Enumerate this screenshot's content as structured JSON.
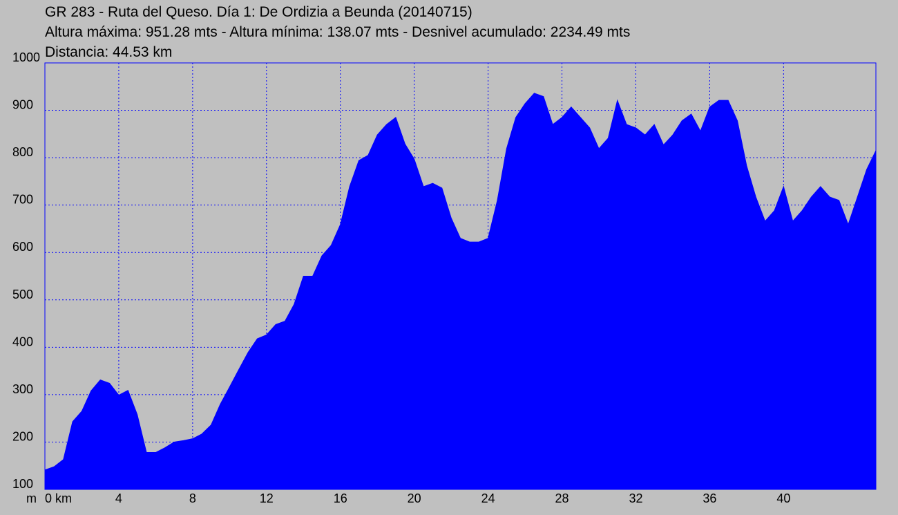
{
  "chart_data": {
    "type": "area",
    "title": "GR 283 - Ruta del Queso. Día 1: De Ordizia a Beunda (20140715)",
    "subtitle": "Altura máxima: 951.28 mts - Altura mínima: 138.07 mts - Desnivel acumulado: 2234.49 mts",
    "annotations": [
      "Distancia: 44.53 km"
    ],
    "ylabel": "m",
    "color": "#0000ff",
    "grid": true,
    "xlim": [
      0,
      45
    ],
    "ylim": [
      100,
      1000
    ],
    "xticks": [
      {
        "value": 0,
        "label": "0 km"
      },
      4,
      8,
      12,
      16,
      20,
      24,
      28,
      32,
      36,
      40
    ],
    "yticks": [
      100,
      200,
      300,
      400,
      500,
      600,
      700,
      800,
      900,
      1000
    ],
    "x": [
      0,
      0.5,
      1,
      1.5,
      2,
      2.5,
      3,
      3.5,
      4,
      4.5,
      5,
      5.5,
      6,
      6.5,
      7,
      7.5,
      8,
      8.5,
      9,
      9.5,
      10,
      10.5,
      11,
      11.5,
      12,
      12.5,
      13,
      13.5,
      14,
      14.5,
      15,
      15.5,
      16,
      16.5,
      17,
      17.5,
      18,
      18.5,
      19,
      19.5,
      20,
      20.5,
      21,
      21.5,
      22,
      22.5,
      23,
      23.5,
      24,
      24.5,
      25,
      25.5,
      26,
      26.5,
      27,
      27.5,
      28,
      28.5,
      29,
      29.5,
      30,
      30.5,
      31,
      31.5,
      32,
      32.5,
      33,
      33.5,
      34,
      34.5,
      35,
      35.5,
      36,
      36.5,
      37,
      37.5,
      38,
      38.5,
      39,
      39.5,
      40,
      40.5,
      41,
      41.5,
      42,
      42.5,
      43,
      43.5,
      44,
      44.5,
      45
    ],
    "values": [
      141,
      148,
      163,
      243,
      265,
      308,
      331,
      324,
      299,
      309,
      258,
      178,
      178,
      188,
      200,
      203,
      207,
      217,
      236,
      280,
      316,
      353,
      389,
      418,
      426,
      448,
      455,
      491,
      550,
      550,
      593,
      615,
      659,
      739,
      794,
      805,
      848,
      870,
      885,
      829,
      797,
      739,
      746,
      736,
      673,
      630,
      622,
      622,
      630,
      710,
      819,
      885,
      914,
      936,
      929,
      870,
      885,
      907,
      885,
      863,
      819,
      841,
      921,
      870,
      863,
      848,
      870,
      827,
      848,
      878,
      892,
      856,
      907,
      921,
      921,
      878,
      783,
      717,
      666,
      688,
      739,
      666,
      688,
      717,
      739,
      717,
      710,
      659,
      717,
      775,
      815
    ]
  }
}
